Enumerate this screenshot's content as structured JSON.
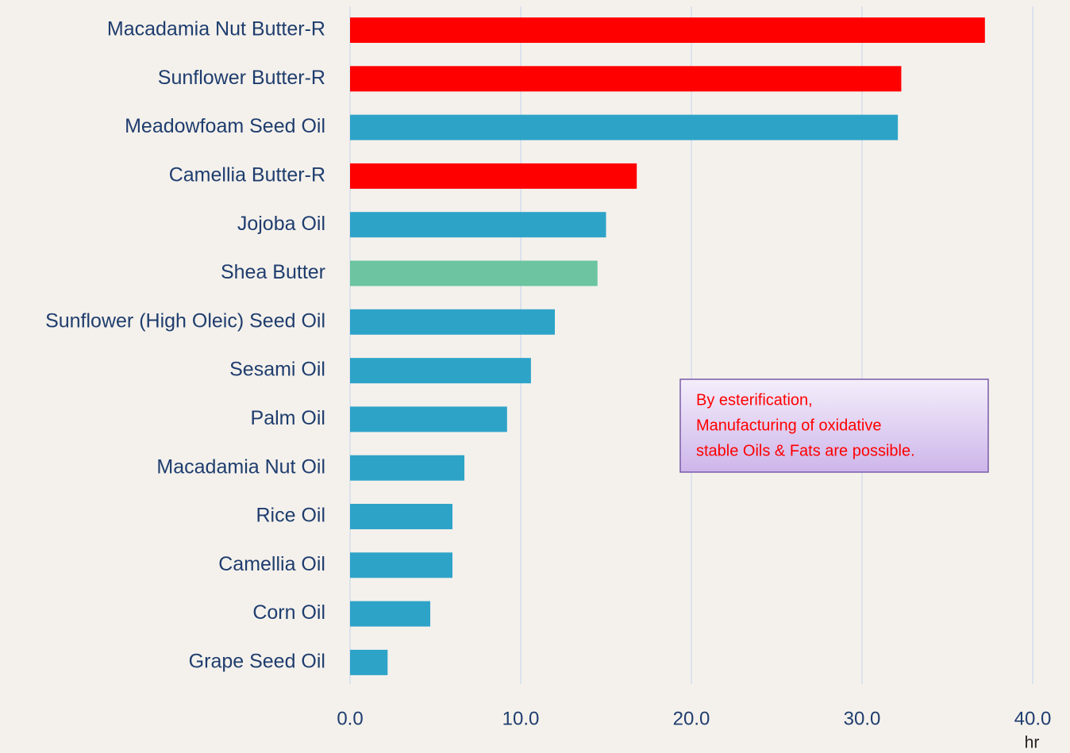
{
  "chart_data": {
    "type": "barh",
    "categories": [
      "Macadamia Nut Butter-R",
      "Sunflower Butter-R",
      "Meadowfoam Seed Oil",
      "Camellia Butter-R",
      "Jojoba Oil",
      "Shea Butter",
      "Sunflower (High Oleic) Seed Oil",
      "Sesami Oil",
      "Palm Oil",
      "Macadamia Nut Oil",
      "Rice Oil",
      "Camellia Oil",
      "Corn Oil",
      "Grape Seed Oil"
    ],
    "values": [
      37.2,
      32.3,
      32.1,
      16.8,
      15.0,
      14.5,
      12.0,
      10.6,
      9.2,
      6.7,
      6.0,
      6.0,
      4.7,
      2.2
    ],
    "colors": [
      "#ff0000",
      "#ff0000",
      "#2ea3c8",
      "#ff0000",
      "#2ea3c8",
      "#6cc5a0",
      "#2ea3c8",
      "#2ea3c8",
      "#2ea3c8",
      "#2ea3c8",
      "#2ea3c8",
      "#2ea3c8",
      "#2ea3c8",
      "#2ea3c8"
    ],
    "xlim": [
      0,
      40
    ],
    "xticks": [
      {
        "value": 0,
        "label": "0.0"
      },
      {
        "value": 10,
        "label": "10.0"
      },
      {
        "value": 20,
        "label": "20.0"
      },
      {
        "value": 30,
        "label": "30.0"
      },
      {
        "value": 40,
        "label": "40.0"
      }
    ],
    "x_axis_label": "hr",
    "grid": true,
    "annotation": [
      "By esterification,",
      "Manufacturing of oxidative",
      "stable Oils & Fats are possible."
    ]
  }
}
